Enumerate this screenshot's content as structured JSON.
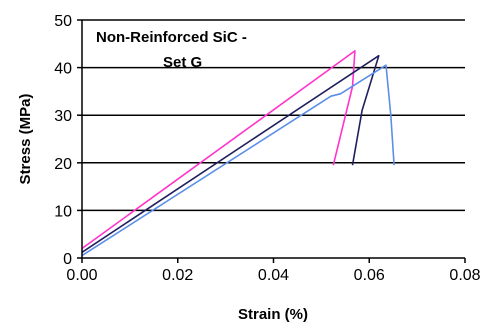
{
  "chart_data": {
    "type": "line",
    "title": "",
    "annotations": [
      "Non-Reinforced SiC -",
      "Set G"
    ],
    "xlabel": "Strain (%)",
    "ylabel": "Stress (MPa)",
    "xlim": [
      0,
      0.08
    ],
    "ylim": [
      0,
      50
    ],
    "x_ticks": [
      "0.00",
      "0.02",
      "0.04",
      "0.06",
      "0.08"
    ],
    "y_ticks": [
      "0",
      "10",
      "20",
      "30",
      "40",
      "50"
    ],
    "grid": "horizontal",
    "legend": "none",
    "series": [
      {
        "color": "#ff33cc",
        "points": [
          [
            0,
            2
          ],
          [
            0.057,
            43.5
          ],
          [
            0.0565,
            36
          ],
          [
            0.0525,
            19.5
          ]
        ]
      },
      {
        "color": "#202060",
        "points": [
          [
            0,
            1.2
          ],
          [
            0.062,
            42.5
          ],
          [
            0.0585,
            31
          ],
          [
            0.0565,
            19.5
          ]
        ]
      },
      {
        "color": "#5b8fe6",
        "points": [
          [
            0,
            0.5
          ],
          [
            0.052,
            34
          ],
          [
            0.054,
            34.5
          ],
          [
            0.0635,
            40.5
          ],
          [
            0.0645,
            30
          ],
          [
            0.0652,
            19.5
          ]
        ]
      }
    ]
  }
}
